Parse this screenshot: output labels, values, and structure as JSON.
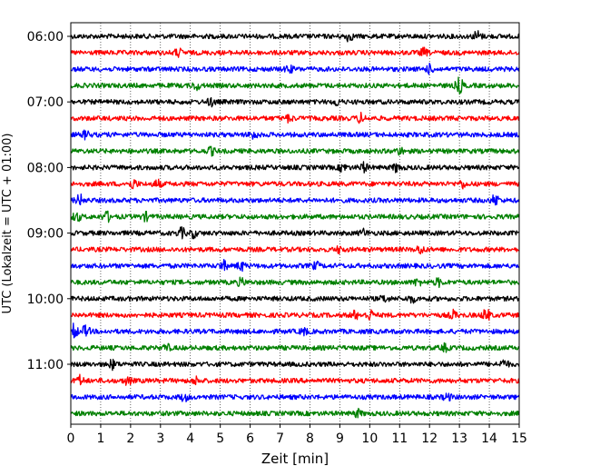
{
  "chart_data": {
    "type": "line",
    "title": "",
    "xlabel": "Zeit  [min]",
    "ylabel": "UTC (Lokalzeit = UTC + 01:00)",
    "xlim": [
      0,
      15
    ],
    "x_ticks": [
      0,
      1,
      2,
      3,
      4,
      5,
      6,
      7,
      8,
      9,
      10,
      11,
      12,
      13,
      14,
      15
    ],
    "y_tick_labels": [
      "06:00",
      "07:00",
      "08:00",
      "09:00",
      "10:00",
      "11:00"
    ],
    "grid": "vertical dotted",
    "trace_colors": [
      "#000000",
      "#ff0000",
      "#0000ff",
      "#008000"
    ],
    "traces": [
      {
        "start": "06:00",
        "color": "#000000",
        "events": [
          {
            "t": 9.3,
            "a": 1.8
          },
          {
            "t": 13.6,
            "a": 2.2
          }
        ]
      },
      {
        "start": "06:15",
        "color": "#ff0000",
        "events": [
          {
            "t": 3.6,
            "a": 1.5
          },
          {
            "t": 11.8,
            "a": 1.5
          }
        ]
      },
      {
        "start": "06:30",
        "color": "#0000ff",
        "events": [
          {
            "t": 7.3,
            "a": 1.4
          },
          {
            "t": 12.0,
            "a": 1.6
          }
        ]
      },
      {
        "start": "06:45",
        "color": "#008000",
        "events": [
          {
            "t": 4.2,
            "a": 1.5
          },
          {
            "t": 13.0,
            "a": 3.2
          }
        ]
      },
      {
        "start": "07:00",
        "color": "#000000",
        "events": [
          {
            "t": 4.7,
            "a": 1.5
          },
          {
            "t": 8.9,
            "a": 1.3
          }
        ]
      },
      {
        "start": "07:15",
        "color": "#ff0000",
        "events": [
          {
            "t": 7.3,
            "a": 1.3
          },
          {
            "t": 9.7,
            "a": 1.8
          }
        ]
      },
      {
        "start": "07:30",
        "color": "#0000ff",
        "events": [
          {
            "t": 0.5,
            "a": 1.5
          },
          {
            "t": 6.1,
            "a": 1.6
          }
        ]
      },
      {
        "start": "07:45",
        "color": "#008000",
        "events": [
          {
            "t": 4.7,
            "a": 1.4
          },
          {
            "t": 11.0,
            "a": 1.3
          }
        ]
      },
      {
        "start": "08:00",
        "color": "#000000",
        "events": [
          {
            "t": 9.1,
            "a": 1.5
          },
          {
            "t": 9.8,
            "a": 1.9
          },
          {
            "t": 10.9,
            "a": 1.6
          }
        ]
      },
      {
        "start": "08:15",
        "color": "#ff0000",
        "events": [
          {
            "t": 2.1,
            "a": 1.8
          },
          {
            "t": 2.9,
            "a": 1.5
          },
          {
            "t": 13.1,
            "a": 1.4
          }
        ]
      },
      {
        "start": "08:30",
        "color": "#0000ff",
        "events": [
          {
            "t": 0.3,
            "a": 2.2
          },
          {
            "t": 14.2,
            "a": 2.3
          }
        ]
      },
      {
        "start": "08:45",
        "color": "#008000",
        "events": [
          {
            "t": 0.2,
            "a": 1.8
          },
          {
            "t": 1.2,
            "a": 2.0
          },
          {
            "t": 2.5,
            "a": 1.5
          }
        ]
      },
      {
        "start": "09:00",
        "color": "#000000",
        "events": [
          {
            "t": 3.7,
            "a": 2.0
          },
          {
            "t": 4.1,
            "a": 1.6
          },
          {
            "t": 9.8,
            "a": 1.4
          }
        ]
      },
      {
        "start": "09:15",
        "color": "#ff0000",
        "events": [
          {
            "t": 9.0,
            "a": 1.3
          },
          {
            "t": 11.7,
            "a": 1.7
          }
        ]
      },
      {
        "start": "09:30",
        "color": "#0000ff",
        "events": [
          {
            "t": 5.1,
            "a": 2.0
          },
          {
            "t": 5.7,
            "a": 1.8
          },
          {
            "t": 8.2,
            "a": 1.3
          }
        ]
      },
      {
        "start": "09:45",
        "color": "#008000",
        "events": [
          {
            "t": 5.7,
            "a": 1.4
          },
          {
            "t": 11.6,
            "a": 1.3
          },
          {
            "t": 12.3,
            "a": 1.5
          }
        ]
      },
      {
        "start": "10:00",
        "color": "#000000",
        "events": [
          {
            "t": 10.5,
            "a": 1.3
          },
          {
            "t": 11.4,
            "a": 1.4
          }
        ]
      },
      {
        "start": "10:15",
        "color": "#ff0000",
        "events": [
          {
            "t": 9.5,
            "a": 1.6
          },
          {
            "t": 10.0,
            "a": 2.0
          },
          {
            "t": 12.8,
            "a": 1.7
          },
          {
            "t": 13.9,
            "a": 2.5
          }
        ]
      },
      {
        "start": "10:30",
        "color": "#0000ff",
        "events": [
          {
            "t": 0.1,
            "a": 3.0
          },
          {
            "t": 0.5,
            "a": 2.2
          },
          {
            "t": 7.8,
            "a": 1.3
          }
        ]
      },
      {
        "start": "10:45",
        "color": "#008000",
        "events": [
          {
            "t": 3.2,
            "a": 1.3
          },
          {
            "t": 12.5,
            "a": 1.4
          }
        ]
      },
      {
        "start": "11:00",
        "color": "#000000",
        "events": [
          {
            "t": 1.4,
            "a": 1.8
          },
          {
            "t": 14.5,
            "a": 1.8
          }
        ]
      },
      {
        "start": "11:15",
        "color": "#ff0000",
        "events": [
          {
            "t": 0.3,
            "a": 2.0
          },
          {
            "t": 1.9,
            "a": 1.6
          },
          {
            "t": 4.2,
            "a": 1.4
          }
        ]
      },
      {
        "start": "11:30",
        "color": "#0000ff",
        "events": [
          {
            "t": 3.8,
            "a": 1.5
          },
          {
            "t": 12.6,
            "a": 1.3
          }
        ]
      },
      {
        "start": "11:45",
        "color": "#008000",
        "events": [
          {
            "t": 9.6,
            "a": 1.4
          }
        ]
      }
    ]
  }
}
